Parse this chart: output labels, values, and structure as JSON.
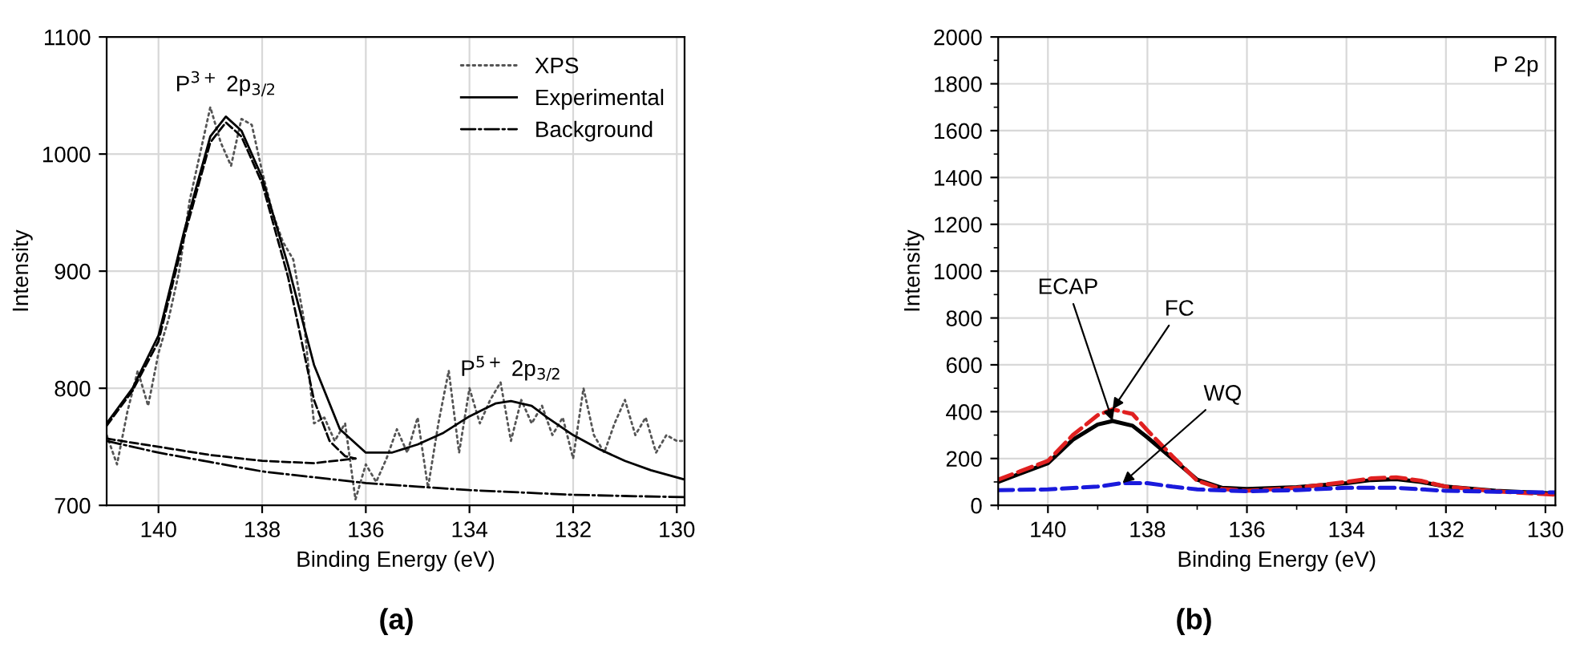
{
  "chart_data": [
    {
      "type": "line",
      "xlabel": "Binding Energy (eV)",
      "ylabel": "Intensity",
      "xlim": [
        141,
        129.85
      ],
      "ylim": [
        700,
        1100
      ],
      "xticks": [
        140,
        138,
        136,
        134,
        132,
        130
      ],
      "yticks": [
        700,
        800,
        900,
        1000,
        1100
      ],
      "grid": true,
      "legend": "top right",
      "annotations": [
        {
          "text": "P$^{3+}$ 2p$_{3/2}$",
          "x": 138.7,
          "y": 1032
        },
        {
          "text": "P$^{5+}$ 2p$_{3/2}$",
          "x": 133.2,
          "y": 789
        },
        "(a)"
      ],
      "series": [
        {
          "name": "XPS",
          "color": "#555555",
          "line_style": "dotted",
          "x": [
            141,
            140.8,
            140.6,
            140.4,
            140.2,
            140,
            139.8,
            139.6,
            139.4,
            139.2,
            139,
            138.8,
            138.6,
            138.4,
            138.2,
            138,
            137.8,
            137.6,
            137.4,
            137.2,
            137,
            136.8,
            136.6,
            136.4,
            136.2,
            136,
            135.8,
            135.6,
            135.4,
            135.2,
            135,
            134.8,
            134.6,
            134.4,
            134.2,
            134,
            133.8,
            133.6,
            133.4,
            133.2,
            133,
            132.8,
            132.6,
            132.4,
            132.2,
            132,
            131.8,
            131.6,
            131.4,
            131.2,
            131,
            130.8,
            130.6,
            130.4,
            130.2,
            130,
            129.85
          ],
          "values": [
            760,
            735,
            780,
            815,
            785,
            830,
            860,
            900,
            960,
            1000,
            1040,
            1010,
            990,
            1030,
            1025,
            985,
            950,
            925,
            910,
            860,
            770,
            775,
            755,
            770,
            705,
            735,
            720,
            740,
            765,
            745,
            775,
            715,
            770,
            815,
            745,
            800,
            770,
            790,
            805,
            755,
            790,
            770,
            785,
            760,
            775,
            740,
            800,
            760,
            745,
            770,
            790,
            760,
            775,
            745,
            760,
            755,
            755
          ]
        },
        {
          "name": "Experimental",
          "color": "#000000",
          "line_style": "solid",
          "x": [
            141,
            140.5,
            140,
            139.5,
            139,
            138.7,
            138.4,
            138,
            137.5,
            137,
            136.5,
            136,
            135.5,
            135,
            134.5,
            134,
            133.5,
            133.2,
            132.8,
            132.5,
            132,
            131.5,
            131,
            130.5,
            129.85
          ],
          "values": [
            770,
            800,
            845,
            935,
            1015,
            1032,
            1020,
            980,
            905,
            820,
            765,
            745,
            745,
            752,
            762,
            776,
            787,
            789,
            785,
            775,
            760,
            748,
            738,
            730,
            722
          ]
        },
        {
          "name": "Background",
          "color": "#000000",
          "line_style": "dashdot",
          "x": [
            141,
            140,
            139,
            138,
            137,
            136,
            135,
            134,
            133,
            132,
            131,
            129.85
          ],
          "values": [
            755,
            745,
            737,
            729,
            724,
            719,
            716,
            713,
            711,
            709,
            708,
            707
          ]
        },
        {
          "color": "#000000",
          "line_style": "dashed",
          "x": [
            141,
            140.5,
            140,
            139.5,
            139,
            138.7,
            138.4,
            138,
            137.5,
            137,
            136.7,
            136.4,
            136.2
          ],
          "values": [
            768,
            798,
            840,
            930,
            1010,
            1027,
            1015,
            975,
            895,
            790,
            755,
            742,
            740
          ]
        },
        {
          "color": "#000000",
          "line_style": "dashed",
          "x": [
            141,
            140,
            139,
            138,
            137,
            136.2
          ],
          "values": [
            757,
            750,
            743,
            738,
            736,
            740
          ]
        }
      ]
    },
    {
      "type": "line",
      "xlabel": "Binding Energy (eV)",
      "ylabel": "Intensity",
      "xlim": [
        141,
        129.8
      ],
      "ylim": [
        0,
        2000
      ],
      "xticks": [
        {
          "value": 141,
          "label": null
        },
        140,
        {
          "value": 139,
          "label": null
        },
        138,
        {
          "value": 137,
          "label": null
        },
        136,
        {
          "value": 135,
          "label": null
        },
        134,
        {
          "value": 133,
          "label": null
        },
        132,
        {
          "value": 131,
          "label": null
        },
        130
      ],
      "yticks": [
        0,
        {
          "value": 100,
          "label": null
        },
        200,
        {
          "value": 300,
          "label": null
        },
        400,
        {
          "value": 500,
          "label": null
        },
        600,
        {
          "value": 700,
          "label": null
        },
        800,
        {
          "value": 900,
          "label": null
        },
        1000,
        {
          "value": 1100,
          "label": null
        },
        1200,
        {
          "value": 1300,
          "label": null
        },
        1400,
        {
          "value": 1500,
          "label": null
        },
        1600,
        {
          "value": 1700,
          "label": null
        },
        1800,
        {
          "value": 1900,
          "label": null
        },
        2000
      ],
      "grid": true,
      "annotations": [
        "P 2p",
        "(b)"
      ],
      "series": [
        {
          "name": "ECAP",
          "color": "#000000",
          "line_style": "solid",
          "x": [
            141,
            140,
            139.5,
            139,
            138.7,
            138.3,
            138,
            137.5,
            137,
            136.5,
            136,
            135,
            134,
            133.5,
            133,
            132.5,
            132,
            131,
            129.8
          ],
          "values": [
            100,
            180,
            280,
            345,
            360,
            340,
            290,
            200,
            110,
            75,
            70,
            78,
            95,
            108,
            112,
            100,
            80,
            62,
            50
          ]
        },
        {
          "name": "FC",
          "color": "#e02020",
          "line_style": "dashed",
          "x": [
            141,
            140,
            139.5,
            139,
            138.7,
            138.3,
            138,
            137.5,
            137,
            136.5,
            136,
            135,
            134,
            133.5,
            133,
            132.5,
            132,
            131,
            129.8
          ],
          "values": [
            110,
            190,
            300,
            385,
            410,
            390,
            320,
            210,
            105,
            70,
            62,
            75,
            100,
            115,
            120,
            105,
            80,
            60,
            45
          ]
        },
        {
          "name": "WQ",
          "color": "#1a1adc",
          "line_style": "dashed",
          "x": [
            141,
            140,
            139,
            138.5,
            138,
            137.5,
            137,
            136,
            135,
            134,
            133,
            132,
            131,
            129.8
          ],
          "values": [
            65,
            68,
            80,
            95,
            95,
            80,
            68,
            60,
            65,
            75,
            75,
            62,
            58,
            55
          ]
        }
      ]
    }
  ]
}
